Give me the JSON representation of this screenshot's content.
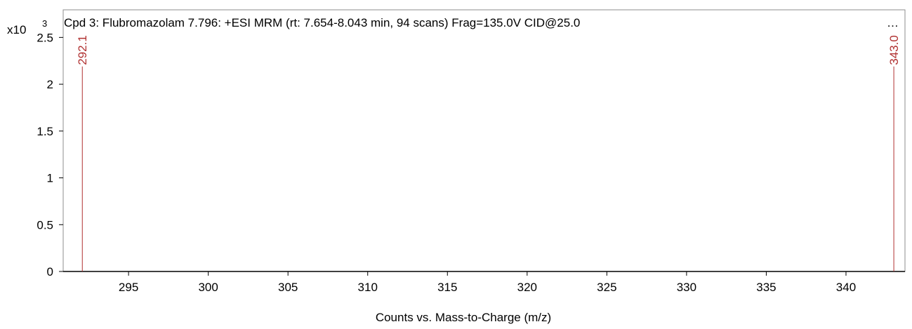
{
  "chart_data": {
    "type": "bar",
    "title": "Cpd 3: Flubromazolam 7.796: +ESI MRM (rt: 7.654-8.043 min, 94 scans) Frag=135.0V CID@25.0",
    "title_overflow": "…",
    "xlabel": "Counts vs. Mass-to-Charge (m/z)",
    "ylabel": "",
    "y_multiplier_base": "x10",
    "y_multiplier_exp": "3",
    "xlim": [
      290.9,
      343.7
    ],
    "ylim": [
      0,
      2.6
    ],
    "x_ticks": [
      295,
      300,
      305,
      310,
      315,
      320,
      325,
      330,
      335,
      340
    ],
    "y_ticks": [
      {
        "value": 0,
        "label": "0"
      },
      {
        "value": 0.5,
        "label": "0.5"
      },
      {
        "value": 1,
        "label": "1"
      },
      {
        "value": 1.5,
        "label": "1.5"
      },
      {
        "value": 2,
        "label": "2"
      },
      {
        "value": 2.5,
        "label": "2.5"
      }
    ],
    "grid": false,
    "peaks": [
      {
        "mz": 292.1,
        "label": "292.1",
        "value": 2.16
      },
      {
        "mz": 343.0,
        "label": "343.0",
        "value": 2.16
      }
    ],
    "colors": {
      "peak": "#b03030",
      "axis": "#000000"
    }
  }
}
